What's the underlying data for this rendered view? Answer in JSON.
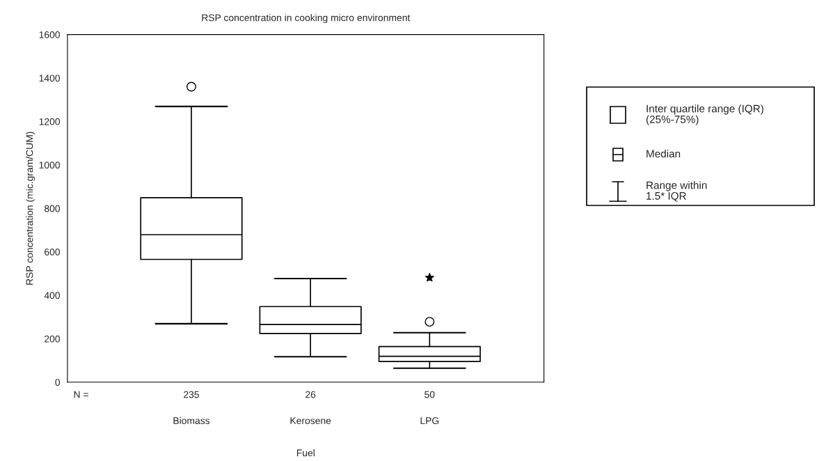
{
  "chart_data": {
    "type": "box",
    "title": "RSP concentration in cooking micro environment",
    "xlabel": "Fuel",
    "ylabel": "RSP concentration (mic.gram/CUM)",
    "categories": [
      "Biomass",
      "Kerosene",
      "LPG"
    ],
    "boxes": [
      {
        "low": 269,
        "q1": 565,
        "median": 679,
        "q3": 849,
        "high": 1269,
        "outliers": [
          1360
        ]
      },
      {
        "low": 117,
        "q1": 224,
        "median": 266,
        "q3": 348,
        "high": 477
      },
      {
        "low": 64,
        "q1": 95,
        "median": 119,
        "q3": 164,
        "high": 228,
        "outliers": [
          278,
          481
        ]
      }
    ],
    "ylim": [
      0,
      1600
    ],
    "yticks": [
      0,
      200,
      400,
      600,
      800,
      1000,
      1200,
      1400,
      1600
    ],
    "grid": false,
    "annotations": [
      "Inter quartile range (IQR)\n(25%-75%)",
      "Median",
      "Range within\n1.5* IQR",
      "N =",
      "235",
      "26",
      "50"
    ]
  }
}
